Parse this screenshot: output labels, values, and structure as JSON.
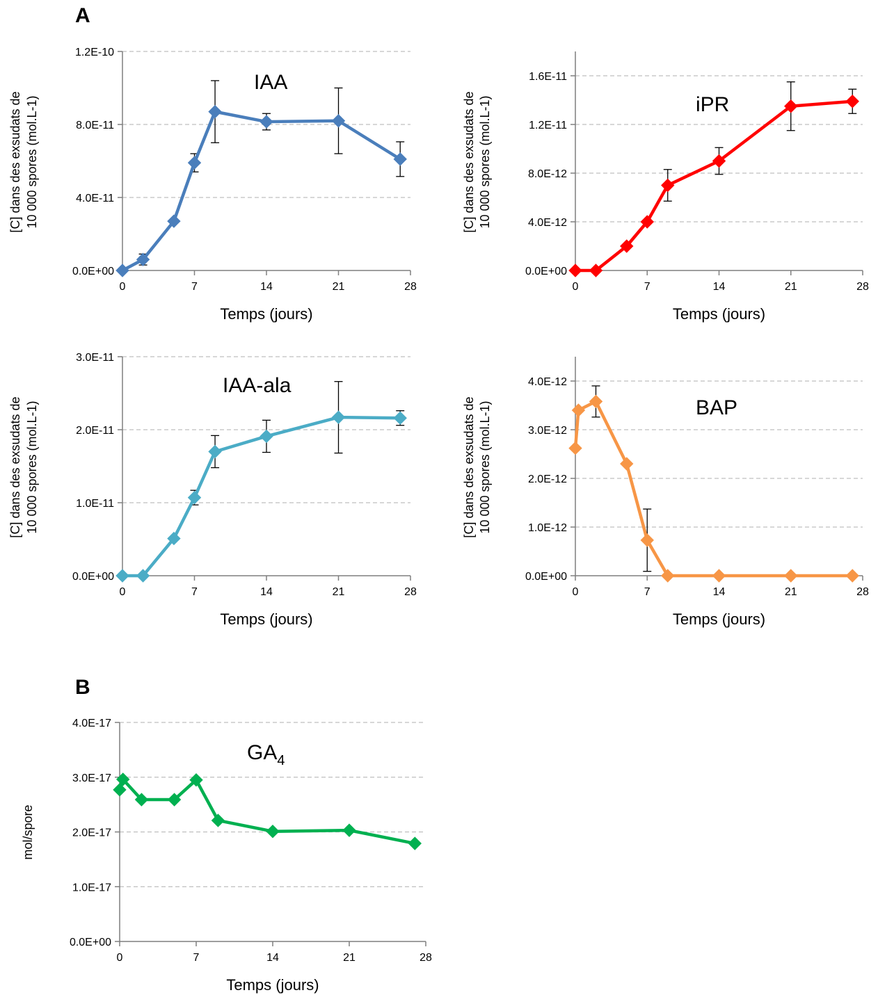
{
  "panels": [
    {
      "letter": "A"
    },
    {
      "letter": "B"
    }
  ],
  "colors": {
    "iaa": "#4a7ebb",
    "ipr": "#ff0000",
    "iaa_ala": "#4bacc6",
    "bap": "#f79646",
    "ga4": "#00b050",
    "grid": "#bfbfbf",
    "error_bar": "#000000"
  },
  "chart_data": [
    {
      "type": "line",
      "label": "IAA",
      "xlabel": "Temps (jours)",
      "ylabel_lines": [
        "[C]  dans des exsudats de",
        "10 000 spores (mol.L-1)"
      ],
      "xlim": [
        0,
        28
      ],
      "ylim": [
        0,
        1.2e-10
      ],
      "xticks": [
        0,
        7,
        14,
        21,
        28
      ],
      "yticks": [
        0,
        4e-11,
        8e-11,
        1.2e-10
      ],
      "ytick_labels": [
        "0.0E+00",
        "4.0E-11",
        "8.0E-11",
        "1.2E-10"
      ],
      "grid": true,
      "series": [
        {
          "color": "#4a7ebb",
          "x": [
            0,
            2,
            5,
            7,
            9,
            14,
            21,
            27
          ],
          "y": [
            0,
            6e-12,
            2.7e-11,
            5.9e-11,
            8.7e-11,
            8.15e-11,
            8.2e-11,
            6.1e-11
          ],
          "err": [
            0,
            3e-12,
            0,
            5e-12,
            1.7e-11,
            4.5e-12,
            1.8e-11,
            9.5e-12
          ]
        }
      ]
    },
    {
      "type": "line",
      "label": "iPR",
      "xlabel": "Temps (jours)",
      "ylabel_lines": [
        "[C]  dans des exsudats de",
        "10 000 spores (mol.L-1)"
      ],
      "xlim": [
        0,
        28
      ],
      "ylim": [
        0,
        1.8e-11
      ],
      "xticks": [
        0,
        7,
        14,
        21,
        28
      ],
      "yticks": [
        0,
        4e-12,
        8e-12,
        1.2e-11,
        1.6e-11
      ],
      "ytick_labels": [
        "0.0E+00",
        "4.0E-12",
        "8.0E-12",
        "1.2E-11",
        "1.6E-11"
      ],
      "grid": true,
      "series": [
        {
          "color": "#ff0000",
          "x": [
            0,
            2,
            5,
            7,
            9,
            14,
            21,
            27
          ],
          "y": [
            0,
            0,
            2e-12,
            4e-12,
            7e-12,
            9e-12,
            1.35e-11,
            1.39e-11
          ],
          "err": [
            0,
            0,
            0,
            0,
            1.3e-12,
            1.1e-12,
            2e-12,
            1e-12
          ]
        }
      ]
    },
    {
      "type": "line",
      "label": "IAA-ala",
      "xlabel": "Temps (jours)",
      "ylabel_lines": [
        "[C]  dans des exsudats de",
        "10 000 spores (mol.L-1)"
      ],
      "xlim": [
        0,
        28
      ],
      "ylim": [
        0,
        3e-11
      ],
      "xticks": [
        0,
        7,
        14,
        21,
        28
      ],
      "yticks": [
        0,
        1e-11,
        2e-11,
        3e-11
      ],
      "ytick_labels": [
        "0.0E+00",
        "1.0E-11",
        "2.0E-11",
        "3.0E-11"
      ],
      "grid": true,
      "series": [
        {
          "color": "#4bacc6",
          "x": [
            0,
            2,
            5,
            7,
            9,
            14,
            21,
            27
          ],
          "y": [
            0,
            0,
            5.1e-12,
            1.07e-11,
            1.7e-11,
            1.91e-11,
            2.17e-11,
            2.16e-11
          ],
          "err": [
            0,
            0,
            0,
            1e-12,
            2.2e-12,
            2.2e-12,
            4.9e-12,
            1e-12
          ]
        }
      ]
    },
    {
      "type": "line",
      "label": "BAP",
      "xlabel": "Temps (jours)",
      "ylabel_lines": [
        "[C]  dans des exsudats de",
        "10 000 spores (mol.L-1)"
      ],
      "xlim": [
        0,
        28
      ],
      "ylim": [
        0,
        4.5e-12
      ],
      "xticks": [
        0,
        7,
        14,
        21,
        28
      ],
      "yticks": [
        0,
        1e-12,
        2e-12,
        3e-12,
        4e-12
      ],
      "ytick_labels": [
        "0.0E+00",
        "1.0E-12",
        "2.0E-12",
        "3.0E-12",
        "4.0E-12"
      ],
      "grid": true,
      "series": [
        {
          "color": "#f79646",
          "x": [
            0,
            0.3,
            2,
            5,
            7,
            9,
            14,
            21,
            27
          ],
          "y": [
            2.62e-12,
            3.4e-12,
            3.58e-12,
            2.3e-12,
            7.3e-13,
            0,
            0,
            0,
            0
          ],
          "err": [
            0,
            0,
            3.2e-13,
            0,
            6.4e-13,
            0,
            0,
            0,
            0
          ]
        }
      ]
    },
    {
      "type": "line",
      "label": "GA",
      "label_sub": "4",
      "xlabel": "Temps (jours)",
      "ylabel_lines": [
        "mol/spore"
      ],
      "xlim": [
        0,
        28
      ],
      "ylim": [
        0,
        4e-17
      ],
      "xticks": [
        0,
        7,
        14,
        21,
        28
      ],
      "yticks": [
        0,
        1e-17,
        2e-17,
        3e-17,
        4e-17
      ],
      "ytick_labels": [
        "0.0E+00",
        "1.0E-17",
        "2.0E-17",
        "3.0E-17",
        "4.0E-17"
      ],
      "grid": true,
      "series": [
        {
          "color": "#00b050",
          "x": [
            0,
            0.3,
            2,
            5,
            7,
            9,
            14,
            21,
            27
          ],
          "y": [
            2.77e-17,
            2.96e-17,
            2.59e-17,
            2.59e-17,
            2.95e-17,
            2.21e-17,
            2.01e-17,
            2.03e-17,
            1.79e-17
          ],
          "err": [
            0,
            0,
            0,
            0,
            0,
            0,
            0,
            0,
            0
          ]
        }
      ]
    }
  ]
}
